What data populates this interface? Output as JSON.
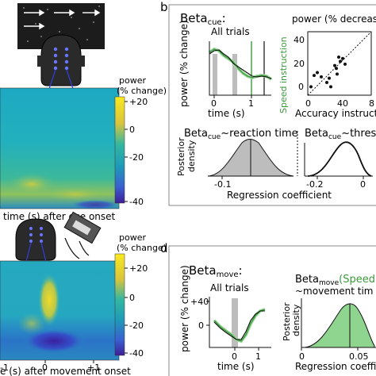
{
  "colors": {
    "black": "#111111",
    "gray_shade": "#bdbdbd",
    "green": "#3a9a3a",
    "light_green": "#9fd89f",
    "panel_border": "#888888",
    "stim_bg": "#1c1c1c"
  },
  "left": {
    "colorbar_label_top": "power",
    "colorbar_label_bottom": "(% change)",
    "colorbar_ticks": [
      "+20",
      "0",
      "-20",
      "-40"
    ],
    "top_xlabel": "time (s) after cue onset",
    "bottom_xticks": [
      "-1",
      "0",
      "+1"
    ],
    "bottom_xlabel": "e (s) after movement onset"
  },
  "panel_b": {
    "letter": "b",
    "beta_title": "Beta",
    "beta_sub": "cue",
    "beta_colon": ":",
    "all_trials": "All trials",
    "ylabel": "power (% change)",
    "xlabel": "time (s)",
    "xticks": [
      "0",
      "1"
    ],
    "green_label": "Speed instruction",
    "scatter_title": "power (% decreas",
    "scatter_yticks": [
      "40",
      "20",
      "0"
    ],
    "scatter_xticks": [
      "0",
      "40",
      "8"
    ],
    "scatter_xlabel": "Accuracy instructio",
    "post1_title": "Beta",
    "post1_sub": "cue",
    "post1_rest": "~reaction time",
    "post1_ylabel_1": "Posterior",
    "post1_ylabel_2": "density",
    "post1_xtick": "-0.1",
    "post1_xtick2": "0",
    "post2_title": "Beta",
    "post2_sub": "cue",
    "post2_rest": "~thresho",
    "post2_xticks": [
      "-0.2",
      "0"
    ],
    "xlabel_coef": "Regression coefficient"
  },
  "panel_d": {
    "letter": "d",
    "beta_title": "Beta",
    "beta_sub": "move",
    "beta_colon": ":",
    "all_trials": "All trials",
    "ylabel": "power (% change)",
    "yticks": [
      "+40",
      "0"
    ],
    "xticks": [
      "0",
      "1"
    ],
    "xlabel": "time (s)",
    "post_title": "Beta",
    "post_sub": "move",
    "post_green": "(Speed",
    "post_rest": "~movement tim",
    "post_ylabel_1": "Posterior",
    "post_ylabel_2": "density",
    "post_xticks": [
      "0",
      "0.05"
    ],
    "post_xlabel": "Regression coeffic"
  },
  "scatter_points": [
    [
      4,
      6
    ],
    [
      8,
      14
    ],
    [
      12,
      16
    ],
    [
      17,
      13
    ],
    [
      24,
      9
    ],
    [
      27,
      12
    ],
    [
      29,
      6
    ],
    [
      34,
      21
    ],
    [
      36,
      19
    ],
    [
      37,
      15
    ],
    [
      39,
      27
    ],
    [
      41,
      24
    ],
    [
      44,
      26
    ],
    [
      47,
      22
    ]
  ]
}
